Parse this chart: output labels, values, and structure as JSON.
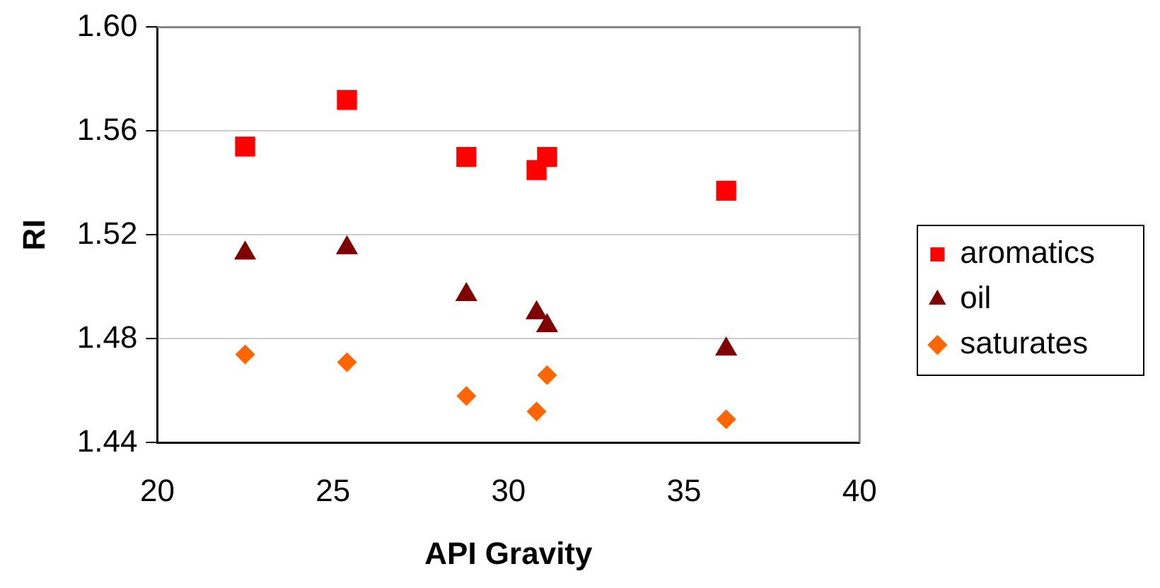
{
  "chart_data": {
    "type": "scatter",
    "xlabel": "API Gravity",
    "ylabel": "RI",
    "xlim": [
      20,
      40
    ],
    "xticks": [
      20,
      25,
      30,
      35,
      40
    ],
    "ylim": [
      1.44,
      1.6
    ],
    "yticks": [
      {
        "value": 1.44,
        "label": "1.44"
      },
      {
        "value": 1.48,
        "label": "1.48"
      },
      {
        "value": 1.52,
        "label": "1.52"
      },
      {
        "value": 1.56,
        "label": "1.56"
      },
      {
        "value": 1.6,
        "label": "1.60"
      }
    ],
    "grid": "y",
    "legend": "right",
    "x": [
      22.5,
      25.4,
      28.8,
      30.8,
      31.1,
      36.2
    ],
    "series": [
      {
        "name": "aromatics",
        "color": "#ff0000",
        "marker": "square",
        "values": [
          1.554,
          1.572,
          1.55,
          1.545,
          1.55,
          1.537
        ]
      },
      {
        "name": "oil",
        "color": "#800000",
        "marker": "triangle",
        "values": [
          1.513,
          1.515,
          1.497,
          1.49,
          1.485,
          1.476
        ]
      },
      {
        "name": "saturates",
        "color": "#ff6600",
        "marker": "diamond",
        "values": [
          1.474,
          1.471,
          1.458,
          1.452,
          1.466,
          1.449
        ]
      }
    ]
  }
}
